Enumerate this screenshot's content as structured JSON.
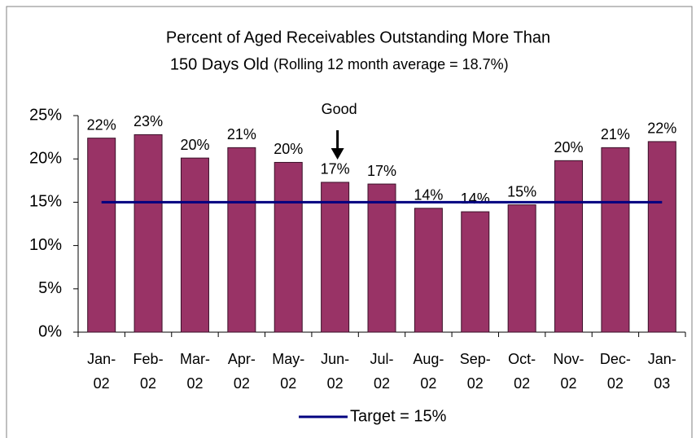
{
  "chart_data": {
    "type": "bar",
    "title": [
      "Percent of Aged Receivables Outstanding More Than",
      "150 Days Old"
    ],
    "subtitle": "(Rolling 12 month average = 18.7%)",
    "categories": [
      "Jan-02",
      "Feb-02",
      "Mar-02",
      "Apr-02",
      "May-02",
      "Jun-02",
      "Jul-02",
      "Aug-02",
      "Sep-02",
      "Oct-02",
      "Nov-02",
      "Dec-02",
      "Jan-03"
    ],
    "values": [
      22.4,
      22.8,
      20.1,
      21.3,
      19.6,
      17.3,
      17.1,
      14.3,
      13.9,
      14.7,
      19.8,
      21.3,
      22.0
    ],
    "value_labels": [
      "22%",
      "23%",
      "20%",
      "21%",
      "20%",
      "17%",
      "17%",
      "14%",
      "14%",
      "15%",
      "20%",
      "21%",
      "22%"
    ],
    "color": "#993366",
    "target": {
      "name": "Target = 15%",
      "value": 15,
      "color": "#000080"
    },
    "annotation": {
      "text": "Good",
      "category": 5
    },
    "ylim": [
      0,
      25
    ],
    "yticks": [
      {
        "value": 0,
        "label": "0%"
      },
      {
        "value": 5,
        "label": "5%"
      },
      {
        "value": 10,
        "label": "10%"
      },
      {
        "value": 15,
        "label": "15%"
      },
      {
        "value": 20,
        "label": "20%"
      },
      {
        "value": 25,
        "label": "25%"
      }
    ],
    "legend": "bottom"
  }
}
